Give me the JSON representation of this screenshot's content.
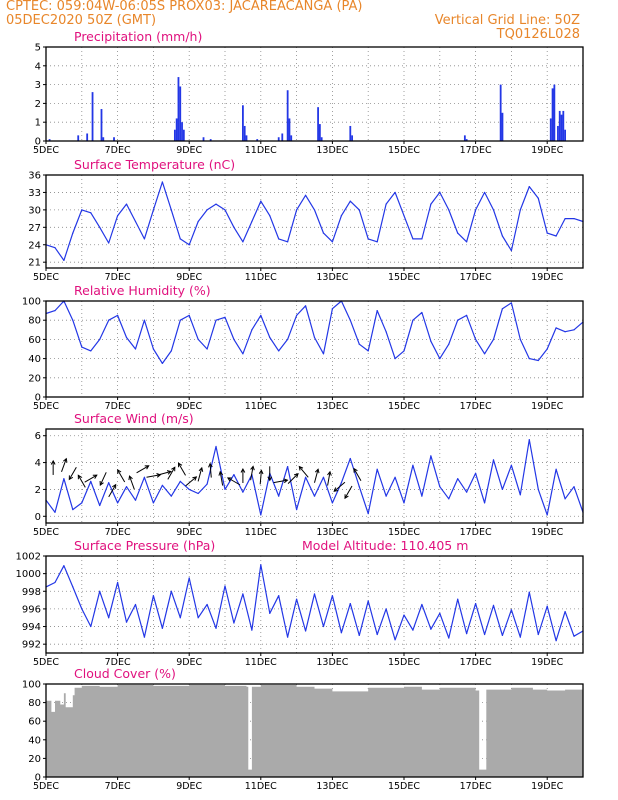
{
  "header": {
    "line1_left": "CPTEC:   059:04W-06:05S   PROX03: JACAREACANGA (PA)",
    "line2_left": "05DEC2020 50Z (GMT)",
    "line2_right": "Vertical Grid Line: 50Z",
    "line3_right": "TQ0126L028"
  },
  "colors": {
    "header": "#e8862a",
    "title": "#e0117e",
    "line": "#2337e6",
    "cloud": "#aaaaaa",
    "grid": "#888888"
  },
  "x_tick_labels": [
    "5DEC",
    "7DEC",
    "9DEC",
    "11DEC",
    "13DEC",
    "15DEC",
    "17DEC",
    "19DEC"
  ],
  "x_tick_days": [
    0,
    2,
    4,
    6,
    8,
    10,
    12,
    14
  ],
  "x_range_days": [
    0,
    15
  ],
  "chart_data": [
    {
      "id": "precip",
      "type": "bar",
      "title": "Precipitation (mm/h)",
      "ylim": [
        0,
        5
      ],
      "yticks": [
        0,
        1,
        2,
        3,
        4,
        5
      ],
      "ytick_labels": [
        "0",
        "1",
        "2",
        "3",
        "4",
        "5"
      ],
      "x": [
        0.1,
        0.9,
        1.15,
        1.3,
        1.55,
        1.6,
        1.9,
        3.6,
        3.65,
        3.7,
        3.75,
        3.8,
        3.85,
        4.4,
        4.6,
        5.5,
        5.55,
        5.6,
        5.9,
        6.5,
        6.6,
        6.75,
        6.8,
        6.85,
        7.6,
        7.65,
        7.7,
        8.5,
        8.55,
        11.7,
        11.75,
        12.7,
        12.75,
        14.1,
        14.15,
        14.2,
        14.3,
        14.35,
        14.4,
        14.45,
        14.5
      ],
      "values": [
        0.1,
        0.3,
        0.4,
        2.6,
        1.7,
        0.2,
        0.2,
        0.6,
        1.2,
        3.4,
        2.9,
        1.0,
        0.6,
        0.2,
        0.1,
        1.9,
        0.8,
        0.3,
        0.1,
        0.2,
        0.4,
        2.7,
        1.2,
        0.3,
        1.8,
        0.9,
        0.2,
        0.8,
        0.3,
        0.3,
        0.1,
        3.0,
        1.5,
        1.2,
        2.8,
        3.0,
        0.8,
        1.6,
        1.4,
        1.6,
        0.6
      ]
    },
    {
      "id": "temp",
      "type": "line",
      "title": "Surface Temperature (nC)",
      "ylim": [
        20,
        36
      ],
      "yticks": [
        21,
        24,
        27,
        30,
        33,
        36
      ],
      "ytick_labels": [
        "21",
        "24",
        "27",
        "30",
        "33",
        "36"
      ],
      "x": [
        0,
        0.25,
        0.5,
        0.75,
        1,
        1.25,
        1.5,
        1.75,
        2,
        2.25,
        2.5,
        2.75,
        3,
        3.25,
        3.5,
        3.75,
        4,
        4.25,
        4.5,
        4.75,
        5,
        5.25,
        5.5,
        5.75,
        6,
        6.25,
        6.5,
        6.75,
        7,
        7.25,
        7.5,
        7.75,
        8,
        8.25,
        8.5,
        8.75,
        9,
        9.25,
        9.5,
        9.75,
        10,
        10.25,
        10.5,
        10.75,
        11,
        11.25,
        11.5,
        11.75,
        12,
        12.25,
        12.5,
        12.75,
        13,
        13.25,
        13.5,
        13.75,
        14,
        14.25,
        14.5,
        14.75,
        15
      ],
      "values": [
        24,
        23.5,
        21.3,
        26,
        30,
        29.5,
        27,
        24.3,
        29,
        31,
        28,
        25,
        30,
        34.8,
        30,
        25,
        24,
        28,
        30,
        31,
        30,
        27,
        24.5,
        28,
        31.5,
        29,
        25,
        24.5,
        30,
        32.5,
        30,
        26,
        24.5,
        29,
        31.5,
        30,
        25,
        24.5,
        31,
        33,
        29,
        25,
        25,
        31,
        33,
        30,
        26,
        24.5,
        30,
        33,
        30,
        25.5,
        23,
        30,
        34,
        32,
        26,
        25.5,
        28.5,
        28.5,
        28
      ]
    },
    {
      "id": "rh",
      "type": "line",
      "title": "Relative Humidity (%)",
      "ylim": [
        0,
        100
      ],
      "yticks": [
        0,
        20,
        40,
        60,
        80,
        100
      ],
      "ytick_labels": [
        "0",
        "20",
        "40",
        "60",
        "80",
        "100"
      ],
      "x": [
        0,
        0.25,
        0.5,
        0.75,
        1,
        1.25,
        1.5,
        1.75,
        2,
        2.25,
        2.5,
        2.75,
        3,
        3.25,
        3.5,
        3.75,
        4,
        4.25,
        4.5,
        4.75,
        5,
        5.25,
        5.5,
        5.75,
        6,
        6.25,
        6.5,
        6.75,
        7,
        7.25,
        7.5,
        7.75,
        8,
        8.25,
        8.5,
        8.75,
        9,
        9.25,
        9.5,
        9.75,
        10,
        10.25,
        10.5,
        10.75,
        11,
        11.25,
        11.5,
        11.75,
        12,
        12.25,
        12.5,
        12.75,
        13,
        13.25,
        13.5,
        13.75,
        14,
        14.25,
        14.5,
        14.75,
        15
      ],
      "values": [
        87,
        90,
        100,
        80,
        52,
        48,
        60,
        80,
        85,
        62,
        50,
        80,
        50,
        35,
        48,
        80,
        85,
        60,
        50,
        80,
        83,
        60,
        45,
        70,
        85,
        62,
        48,
        60,
        85,
        95,
        62,
        45,
        92,
        100,
        80,
        55,
        48,
        90,
        68,
        40,
        48,
        80,
        88,
        58,
        40,
        55,
        80,
        85,
        60,
        45,
        60,
        92,
        98,
        60,
        40,
        38,
        50,
        72,
        68,
        70,
        78
      ]
    },
    {
      "id": "wind",
      "type": "line",
      "title": "Surface Wind (m/s)",
      "ylim": [
        -0.5,
        6.5
      ],
      "yticks": [
        0,
        2,
        4,
        6
      ],
      "ytick_labels": [
        "0",
        "2",
        "4",
        "6"
      ],
      "x": [
        0,
        0.25,
        0.5,
        0.75,
        1,
        1.25,
        1.5,
        1.75,
        2,
        2.25,
        2.5,
        2.75,
        3,
        3.25,
        3.5,
        3.75,
        4,
        4.25,
        4.5,
        4.75,
        5,
        5.25,
        5.5,
        5.75,
        6,
        6.25,
        6.5,
        6.75,
        7,
        7.25,
        7.5,
        7.75,
        8,
        8.25,
        8.5,
        8.75,
        9,
        9.25,
        9.5,
        9.75,
        10,
        10.25,
        10.5,
        10.75,
        11,
        11.25,
        11.5,
        11.75,
        12,
        12.25,
        12.5,
        12.75,
        13,
        13.25,
        13.5,
        13.75,
        14,
        14.25,
        14.5,
        14.75,
        15
      ],
      "values": [
        1.2,
        0.3,
        2.8,
        0.5,
        1.0,
        2.6,
        0.8,
        2.5,
        1.0,
        2.2,
        1.2,
        2.9,
        1.0,
        2.3,
        1.5,
        2.6,
        2.0,
        1.7,
        2.4,
        5.2,
        2.0,
        3.1,
        1.8,
        3.1,
        0.1,
        3.2,
        1.5,
        3.7,
        0.5,
        2.9,
        1.5,
        2.9,
        1.0,
        2.5,
        4.3,
        2.2,
        0.2,
        3.5,
        1.5,
        2.9,
        1.0,
        3.8,
        1.5,
        4.5,
        2.2,
        1.3,
        2.8,
        1.8,
        3.2,
        1.0,
        4.2,
        2.0,
        3.8,
        1.6,
        5.7,
        2.0,
        0.1,
        3.5,
        1.3,
        2.2,
        0.3
      ]
    },
    {
      "id": "press",
      "type": "line",
      "title": "Surface Pressure (hPa)",
      "annotation": "Model Altitude: 110.405 m",
      "ylim": [
        991,
        1002
      ],
      "yticks": [
        992,
        994,
        996,
        998,
        1000,
        1002
      ],
      "ytick_labels": [
        "992",
        "994",
        "996",
        "998",
        "1000",
        "1002"
      ],
      "x": [
        0,
        0.25,
        0.5,
        0.75,
        1,
        1.25,
        1.5,
        1.75,
        2,
        2.25,
        2.5,
        2.75,
        3,
        3.25,
        3.5,
        3.75,
        4,
        4.25,
        4.5,
        4.75,
        5,
        5.25,
        5.5,
        5.75,
        6,
        6.25,
        6.5,
        6.75,
        7,
        7.25,
        7.5,
        7.75,
        8,
        8.25,
        8.5,
        8.75,
        9,
        9.25,
        9.5,
        9.75,
        10,
        10.25,
        10.5,
        10.75,
        11,
        11.25,
        11.5,
        11.75,
        12,
        12.25,
        12.5,
        12.75,
        13,
        13.25,
        13.5,
        13.75,
        14,
        14.25,
        14.5,
        14.75,
        15
      ],
      "values": [
        998.5,
        999,
        1000.9,
        998.5,
        996,
        994,
        998,
        995,
        999,
        994.5,
        996.5,
        992.8,
        997.5,
        993.8,
        998,
        995,
        999.5,
        995,
        996.5,
        993.8,
        998.6,
        994.4,
        997.7,
        993.6,
        1001,
        995.5,
        997.5,
        992.8,
        997.1,
        993.5,
        997.7,
        994,
        997.5,
        993.3,
        996.6,
        993,
        996.9,
        993.1,
        996,
        992.5,
        995.3,
        993.6,
        996.5,
        993.7,
        995.5,
        992.7,
        997.1,
        993.2,
        996.6,
        993.1,
        996.4,
        993,
        995.9,
        992.8,
        997.9,
        993.1,
        996.3,
        992.4,
        995.7,
        992.9,
        993.5
      ]
    },
    {
      "id": "cloud",
      "type": "area",
      "title": "Cloud Cover (%)",
      "ylim": [
        0,
        100
      ],
      "yticks": [
        0,
        20,
        40,
        60,
        80,
        100
      ],
      "ytick_labels": [
        "0",
        "20",
        "40",
        "60",
        "80",
        "100"
      ],
      "x": [
        0,
        0.1,
        0.15,
        0.25,
        0.4,
        0.5,
        0.55,
        0.75,
        0.8,
        1,
        1.5,
        2,
        3,
        4,
        5,
        5.6,
        5.65,
        5.7,
        5.75,
        6,
        7,
        7.5,
        8,
        9,
        10,
        10.5,
        11,
        12,
        12.1,
        12.15,
        12.3,
        13,
        13.6,
        14,
        14.5,
        15
      ],
      "values": [
        82,
        82,
        70,
        82,
        78,
        90,
        75,
        88,
        96,
        98,
        97,
        99,
        98,
        99,
        98,
        97,
        8,
        8,
        97,
        99,
        97,
        95,
        92,
        96,
        97,
        94,
        96,
        93,
        8,
        8,
        94,
        96,
        94,
        93,
        94,
        93
      ]
    }
  ],
  "wind_vectors": {
    "days": [
      0.2,
      0.5,
      0.75,
      1.0,
      1.25,
      1.6,
      1.85,
      2.1,
      2.4,
      2.7,
      3.0,
      3.3,
      3.5,
      3.8,
      4.05,
      4.3,
      4.6,
      4.9,
      5.25,
      5.5,
      5.75,
      6.0,
      6.25,
      6.55,
      6.9,
      7.2,
      7.55,
      7.9,
      8.2,
      8.45,
      8.7
    ],
    "speeds": [
      3.6,
      3.8,
      3.2,
      2.6,
      2.8,
      2.8,
      1.9,
      3.0,
      2.5,
      3.5,
      3.0,
      3.2,
      3.2,
      3.5,
      2.6,
      3.1,
      3.4,
      2.8,
      2.6,
      3.0,
      3.2,
      2.9,
      3.2,
      2.6,
      2.8,
      3.3,
      3.0,
      2.8,
      2.2,
      1.8,
      3.1
    ],
    "angles_deg": [
      90,
      70,
      240,
      120,
      30,
      245,
      60,
      120,
      110,
      30,
      10,
      15,
      60,
      120,
      40,
      75,
      95,
      100,
      150,
      90,
      80,
      85,
      270,
      10,
      45,
      130,
      75,
      80,
      220,
      240,
      120
    ]
  }
}
